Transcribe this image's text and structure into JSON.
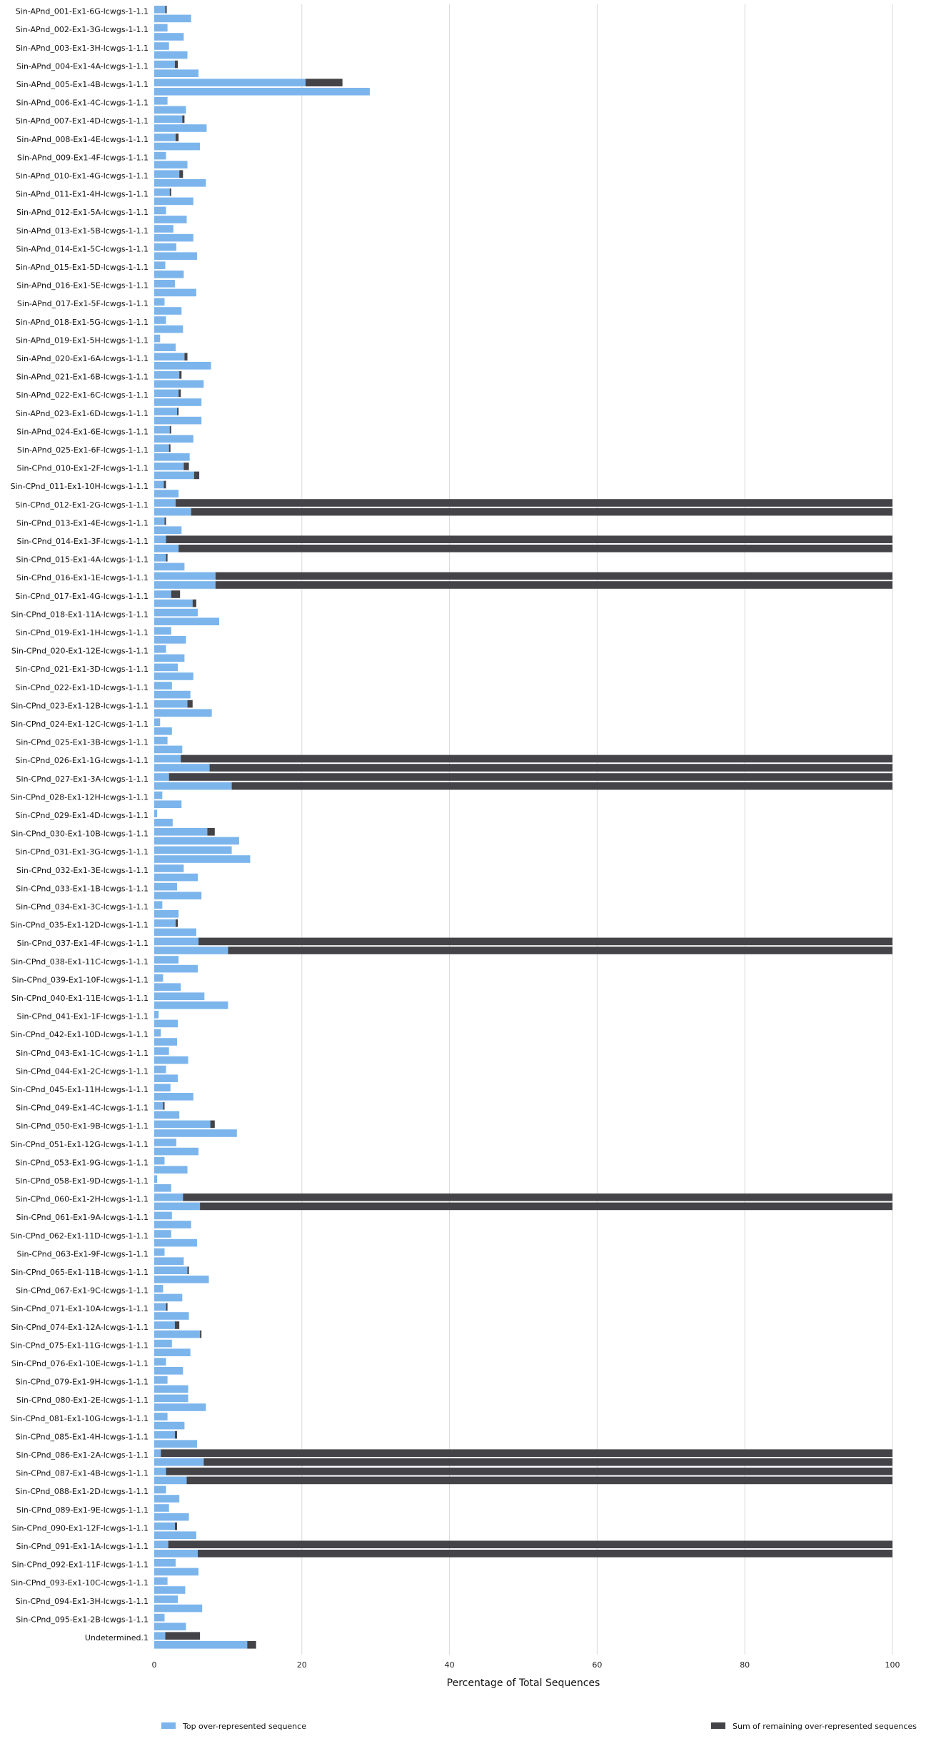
{
  "chart_data": {
    "type": "bar",
    "orientation": "horizontal",
    "stacked": true,
    "xlabel": "Percentage of Total Sequences",
    "xlim": [
      0,
      100
    ],
    "xticks": [
      0,
      20,
      40,
      60,
      80,
      100
    ],
    "grid": "vertical",
    "legend_position": "bottom",
    "colors": {
      "top": "#7cb5ec",
      "remaining": "#434348",
      "grid": "#d9d9d9"
    },
    "series": [
      {
        "name": "Top over-represented sequence",
        "color": "#7cb5ec"
      },
      {
        "name": "Sum of remaining over-represented sequences",
        "color": "#434348"
      }
    ],
    "categories": [
      "Sin-APnd_001-Ex1-6G-lcwgs-1-1.1",
      "Sin-APnd_002-Ex1-3G-lcwgs-1-1.1",
      "Sin-APnd_003-Ex1-3H-lcwgs-1-1.1",
      "Sin-APnd_004-Ex1-4A-lcwgs-1-1.1",
      "Sin-APnd_005-Ex1-4B-lcwgs-1-1.1",
      "Sin-APnd_006-Ex1-4C-lcwgs-1-1.1",
      "Sin-APnd_007-Ex1-4D-lcwgs-1-1.1",
      "Sin-APnd_008-Ex1-4E-lcwgs-1-1.1",
      "Sin-APnd_009-Ex1-4F-lcwgs-1-1.1",
      "Sin-APnd_010-Ex1-4G-lcwgs-1-1.1",
      "Sin-APnd_011-Ex1-4H-lcwgs-1-1.1",
      "Sin-APnd_012-Ex1-5A-lcwgs-1-1.1",
      "Sin-APnd_013-Ex1-5B-lcwgs-1-1.1",
      "Sin-APnd_014-Ex1-5C-lcwgs-1-1.1",
      "Sin-APnd_015-Ex1-5D-lcwgs-1-1.1",
      "Sin-APnd_016-Ex1-5E-lcwgs-1-1.1",
      "Sin-APnd_017-Ex1-5F-lcwgs-1-1.1",
      "Sin-APnd_018-Ex1-5G-lcwgs-1-1.1",
      "Sin-APnd_019-Ex1-5H-lcwgs-1-1.1",
      "Sin-APnd_020-Ex1-6A-lcwgs-1-1.1",
      "Sin-APnd_021-Ex1-6B-lcwgs-1-1.1",
      "Sin-APnd_022-Ex1-6C-lcwgs-1-1.1",
      "Sin-APnd_023-Ex1-6D-lcwgs-1-1.1",
      "Sin-APnd_024-Ex1-6E-lcwgs-1-1.1",
      "Sin-APnd_025-Ex1-6F-lcwgs-1-1.1",
      "Sin-CPnd_010-Ex1-2F-lcwgs-1-1.1",
      "Sin-CPnd_011-Ex1-10H-lcwgs-1-1.1",
      "Sin-CPnd_012-Ex1-2G-lcwgs-1-1.1",
      "Sin-CPnd_013-Ex1-4E-lcwgs-1-1.1",
      "Sin-CPnd_014-Ex1-3F-lcwgs-1-1.1",
      "Sin-CPnd_015-Ex1-4A-lcwgs-1-1.1",
      "Sin-CPnd_016-Ex1-1E-lcwgs-1-1.1",
      "Sin-CPnd_017-Ex1-4G-lcwgs-1-1.1",
      "Sin-CPnd_018-Ex1-11A-lcwgs-1-1.1",
      "Sin-CPnd_019-Ex1-1H-lcwgs-1-1.1",
      "Sin-CPnd_020-Ex1-12E-lcwgs-1-1.1",
      "Sin-CPnd_021-Ex1-3D-lcwgs-1-1.1",
      "Sin-CPnd_022-Ex1-1D-lcwgs-1-1.1",
      "Sin-CPnd_023-Ex1-12B-lcwgs-1-1.1",
      "Sin-CPnd_024-Ex1-12C-lcwgs-1-1.1",
      "Sin-CPnd_025-Ex1-3B-lcwgs-1-1.1",
      "Sin-CPnd_026-Ex1-1G-lcwgs-1-1.1",
      "Sin-CPnd_027-Ex1-3A-lcwgs-1-1.1",
      "Sin-CPnd_028-Ex1-12H-lcwgs-1-1.1",
      "Sin-CPnd_029-Ex1-4D-lcwgs-1-1.1",
      "Sin-CPnd_030-Ex1-10B-lcwgs-1-1.1",
      "Sin-CPnd_031-Ex1-3G-lcwgs-1-1.1",
      "Sin-CPnd_032-Ex1-3E-lcwgs-1-1.1",
      "Sin-CPnd_033-Ex1-1B-lcwgs-1-1.1",
      "Sin-CPnd_034-Ex1-3C-lcwgs-1-1.1",
      "Sin-CPnd_035-Ex1-12D-lcwgs-1-1.1",
      "Sin-CPnd_037-Ex1-4F-lcwgs-1-1.1",
      "Sin-CPnd_038-Ex1-11C-lcwgs-1-1.1",
      "Sin-CPnd_039-Ex1-10F-lcwgs-1-1.1",
      "Sin-CPnd_040-Ex1-11E-lcwgs-1-1.1",
      "Sin-CPnd_041-Ex1-1F-lcwgs-1-1.1",
      "Sin-CPnd_042-Ex1-10D-lcwgs-1-1.1",
      "Sin-CPnd_043-Ex1-1C-lcwgs-1-1.1",
      "Sin-CPnd_044-Ex1-2C-lcwgs-1-1.1",
      "Sin-CPnd_045-Ex1-11H-lcwgs-1-1.1",
      "Sin-CPnd_049-Ex1-4C-lcwgs-1-1.1",
      "Sin-CPnd_050-Ex1-9B-lcwgs-1-1.1",
      "Sin-CPnd_051-Ex1-12G-lcwgs-1-1.1",
      "Sin-CPnd_053-Ex1-9G-lcwgs-1-1.1",
      "Sin-CPnd_058-Ex1-9D-lcwgs-1-1.1",
      "Sin-CPnd_060-Ex1-2H-lcwgs-1-1.1",
      "Sin-CPnd_061-Ex1-9A-lcwgs-1-1.1",
      "Sin-CPnd_062-Ex1-11D-lcwgs-1-1.1",
      "Sin-CPnd_063-Ex1-9F-lcwgs-1-1.1",
      "Sin-CPnd_065-Ex1-11B-lcwgs-1-1.1",
      "Sin-CPnd_067-Ex1-9C-lcwgs-1-1.1",
      "Sin-CPnd_071-Ex1-10A-lcwgs-1-1.1",
      "Sin-CPnd_074-Ex1-12A-lcwgs-1-1.1",
      "Sin-CPnd_075-Ex1-11G-lcwgs-1-1.1",
      "Sin-CPnd_076-Ex1-10E-lcwgs-1-1.1",
      "Sin-CPnd_079-Ex1-9H-lcwgs-1-1.1",
      "Sin-CPnd_080-Ex1-2E-lcwgs-1-1.1",
      "Sin-CPnd_081-Ex1-10G-lcwgs-1-1.1",
      "Sin-CPnd_085-Ex1-4H-lcwgs-1-1.1",
      "Sin-CPnd_086-Ex1-2A-lcwgs-1-1.1",
      "Sin-CPnd_087-Ex1-4B-lcwgs-1-1.1",
      "Sin-CPnd_088-Ex1-2D-lcwgs-1-1.1",
      "Sin-CPnd_089-Ex1-9E-lcwgs-1-1.1",
      "Sin-CPnd_090-Ex1-12F-lcwgs-1-1.1",
      "Sin-CPnd_091-Ex1-1A-lcwgs-1-1.1",
      "Sin-CPnd_092-Ex1-11F-lcwgs-1-1.1",
      "Sin-CPnd_093-Ex1-10C-lcwgs-1-1.1",
      "Sin-CPnd_094-Ex1-3H-lcwgs-1-1.1",
      "Sin-CPnd_095-Ex1-2B-lcwgs-1-1.1",
      "Undetermined.1"
    ],
    "values": [
      [
        [
          1.5,
          0.2
        ],
        [
          5.0,
          0
        ]
      ],
      [
        [
          1.8,
          0
        ],
        [
          4.0,
          0
        ]
      ],
      [
        [
          2.0,
          0
        ],
        [
          4.5,
          0
        ]
      ],
      [
        [
          2.8,
          0.4
        ],
        [
          6.0,
          0
        ]
      ],
      [
        [
          20.5,
          5.0
        ],
        [
          29.2,
          0
        ]
      ],
      [
        [
          1.8,
          0
        ],
        [
          4.3,
          0
        ]
      ],
      [
        [
          3.8,
          0.3
        ],
        [
          7.1,
          0
        ]
      ],
      [
        [
          2.9,
          0.4
        ],
        [
          6.2,
          0
        ]
      ],
      [
        [
          1.6,
          0
        ],
        [
          4.5,
          0
        ]
      ],
      [
        [
          3.4,
          0.5
        ],
        [
          7.0,
          0
        ]
      ],
      [
        [
          2.1,
          0.2
        ],
        [
          5.3,
          0
        ]
      ],
      [
        [
          1.6,
          0
        ],
        [
          4.4,
          0
        ]
      ],
      [
        [
          2.6,
          0
        ],
        [
          5.3,
          0
        ]
      ],
      [
        [
          3.0,
          0
        ],
        [
          5.8,
          0
        ]
      ],
      [
        [
          1.5,
          0
        ],
        [
          4.0,
          0
        ]
      ],
      [
        [
          2.8,
          0
        ],
        [
          5.7,
          0
        ]
      ],
      [
        [
          1.4,
          0
        ],
        [
          3.7,
          0
        ]
      ],
      [
        [
          1.6,
          0
        ],
        [
          3.9,
          0
        ]
      ],
      [
        [
          0.8,
          0
        ],
        [
          2.9,
          0
        ]
      ],
      [
        [
          4.1,
          0.4
        ],
        [
          7.7,
          0
        ]
      ],
      [
        [
          3.4,
          0.3
        ],
        [
          6.7,
          0
        ]
      ],
      [
        [
          3.3,
          0.3
        ],
        [
          6.4,
          0
        ]
      ],
      [
        [
          3.1,
          0.2
        ],
        [
          6.4,
          0
        ]
      ],
      [
        [
          2.1,
          0.2
        ],
        [
          5.3,
          0
        ]
      ],
      [
        [
          2.0,
          0.2
        ],
        [
          4.8,
          0
        ]
      ],
      [
        [
          4.0,
          0.7
        ],
        [
          5.4,
          0.7
        ]
      ],
      [
        [
          1.3,
          0.3
        ],
        [
          3.3,
          0
        ]
      ],
      [
        [
          2.9,
          97.1
        ],
        [
          5.0,
          95.0
        ]
      ],
      [
        [
          1.4,
          0.2
        ],
        [
          3.7,
          0
        ]
      ],
      [
        [
          1.6,
          98.4
        ],
        [
          3.3,
          96.7
        ]
      ],
      [
        [
          1.6,
          0.2
        ],
        [
          4.1,
          0
        ]
      ],
      [
        [
          8.3,
          91.7
        ],
        [
          8.3,
          91.7
        ]
      ],
      [
        [
          2.3,
          1.2
        ],
        [
          5.2,
          0.5
        ]
      ],
      [
        [
          5.9,
          0
        ],
        [
          8.8,
          0
        ]
      ],
      [
        [
          2.3,
          0
        ],
        [
          4.3,
          0
        ]
      ],
      [
        [
          1.6,
          0
        ],
        [
          4.1,
          0
        ]
      ],
      [
        [
          3.2,
          0
        ],
        [
          5.3,
          0
        ]
      ],
      [
        [
          2.4,
          0
        ],
        [
          4.9,
          0
        ]
      ],
      [
        [
          4.5,
          0.7
        ],
        [
          7.8,
          0
        ]
      ],
      [
        [
          0.8,
          0
        ],
        [
          2.4,
          0
        ]
      ],
      [
        [
          1.8,
          0
        ],
        [
          3.8,
          0
        ]
      ],
      [
        [
          3.6,
          96.4
        ],
        [
          7.5,
          92.5
        ]
      ],
      [
        [
          2.0,
          98.0
        ],
        [
          10.5,
          89.5
        ]
      ],
      [
        [
          1.1,
          0
        ],
        [
          3.7,
          0
        ]
      ],
      [
        [
          0.4,
          0
        ],
        [
          2.5,
          0
        ]
      ],
      [
        [
          7.2,
          1.0
        ],
        [
          11.5,
          0
        ]
      ],
      [
        [
          10.5,
          0
        ],
        [
          13.0,
          0
        ]
      ],
      [
        [
          4.0,
          0
        ],
        [
          5.9,
          0
        ]
      ],
      [
        [
          3.1,
          0
        ],
        [
          6.4,
          0
        ]
      ],
      [
        [
          1.1,
          0
        ],
        [
          3.3,
          0
        ]
      ],
      [
        [
          2.9,
          0.3
        ],
        [
          5.7,
          0
        ]
      ],
      [
        [
          6.0,
          94.0
        ],
        [
          10.0,
          90.0
        ]
      ],
      [
        [
          3.3,
          0
        ],
        [
          5.9,
          0
        ]
      ],
      [
        [
          1.2,
          0
        ],
        [
          3.6,
          0
        ]
      ],
      [
        [
          6.8,
          0
        ],
        [
          10.0,
          0
        ]
      ],
      [
        [
          0.6,
          0
        ],
        [
          3.2,
          0
        ]
      ],
      [
        [
          0.9,
          0
        ],
        [
          3.1,
          0
        ]
      ],
      [
        [
          2.0,
          0
        ],
        [
          4.6,
          0
        ]
      ],
      [
        [
          1.6,
          0
        ],
        [
          3.2,
          0
        ]
      ],
      [
        [
          2.2,
          0
        ],
        [
          5.3,
          0
        ]
      ],
      [
        [
          1.2,
          0.2
        ],
        [
          3.4,
          0
        ]
      ],
      [
        [
          7.6,
          0.6
        ],
        [
          11.2,
          0
        ]
      ],
      [
        [
          3.0,
          0
        ],
        [
          6.0,
          0
        ]
      ],
      [
        [
          1.4,
          0
        ],
        [
          4.5,
          0
        ]
      ],
      [
        [
          0.4,
          0
        ],
        [
          2.3,
          0
        ]
      ],
      [
        [
          3.9,
          96.1
        ],
        [
          6.2,
          93.8
        ]
      ],
      [
        [
          2.4,
          0
        ],
        [
          5.0,
          0
        ]
      ],
      [
        [
          2.3,
          0
        ],
        [
          5.8,
          0
        ]
      ],
      [
        [
          1.4,
          0
        ],
        [
          4.0,
          0
        ]
      ],
      [
        [
          4.5,
          0.2
        ],
        [
          7.4,
          0
        ]
      ],
      [
        [
          1.2,
          0
        ],
        [
          3.8,
          0
        ]
      ],
      [
        [
          1.6,
          0.2
        ],
        [
          4.7,
          0
        ]
      ],
      [
        [
          2.8,
          0.6
        ],
        [
          6.2,
          0.2
        ]
      ],
      [
        [
          2.4,
          0
        ],
        [
          4.9,
          0
        ]
      ],
      [
        [
          1.6,
          0
        ],
        [
          3.9,
          0
        ]
      ],
      [
        [
          1.8,
          0
        ],
        [
          4.6,
          0
        ]
      ],
      [
        [
          4.6,
          0
        ],
        [
          7.0,
          0
        ]
      ],
      [
        [
          1.8,
          0
        ],
        [
          4.1,
          0
        ]
      ],
      [
        [
          2.8,
          0.3
        ],
        [
          5.8,
          0
        ]
      ],
      [
        [
          0.9,
          99.1
        ],
        [
          6.7,
          93.3
        ]
      ],
      [
        [
          1.6,
          98.4
        ],
        [
          4.4,
          95.6
        ]
      ],
      [
        [
          1.6,
          0
        ],
        [
          3.4,
          0
        ]
      ],
      [
        [
          2.0,
          0
        ],
        [
          4.7,
          0
        ]
      ],
      [
        [
          2.8,
          0.3
        ],
        [
          5.7,
          0
        ]
      ],
      [
        [
          1.9,
          98.1
        ],
        [
          5.9,
          94.1
        ]
      ],
      [
        [
          2.9,
          0
        ],
        [
          6.0,
          0
        ]
      ],
      [
        [
          1.8,
          0
        ],
        [
          4.2,
          0
        ]
      ],
      [
        [
          3.2,
          0
        ],
        [
          6.5,
          0
        ]
      ],
      [
        [
          1.4,
          0
        ],
        [
          4.3,
          0
        ]
      ],
      [
        [
          1.5,
          4.7
        ],
        [
          12.6,
          1.2
        ]
      ]
    ]
  }
}
